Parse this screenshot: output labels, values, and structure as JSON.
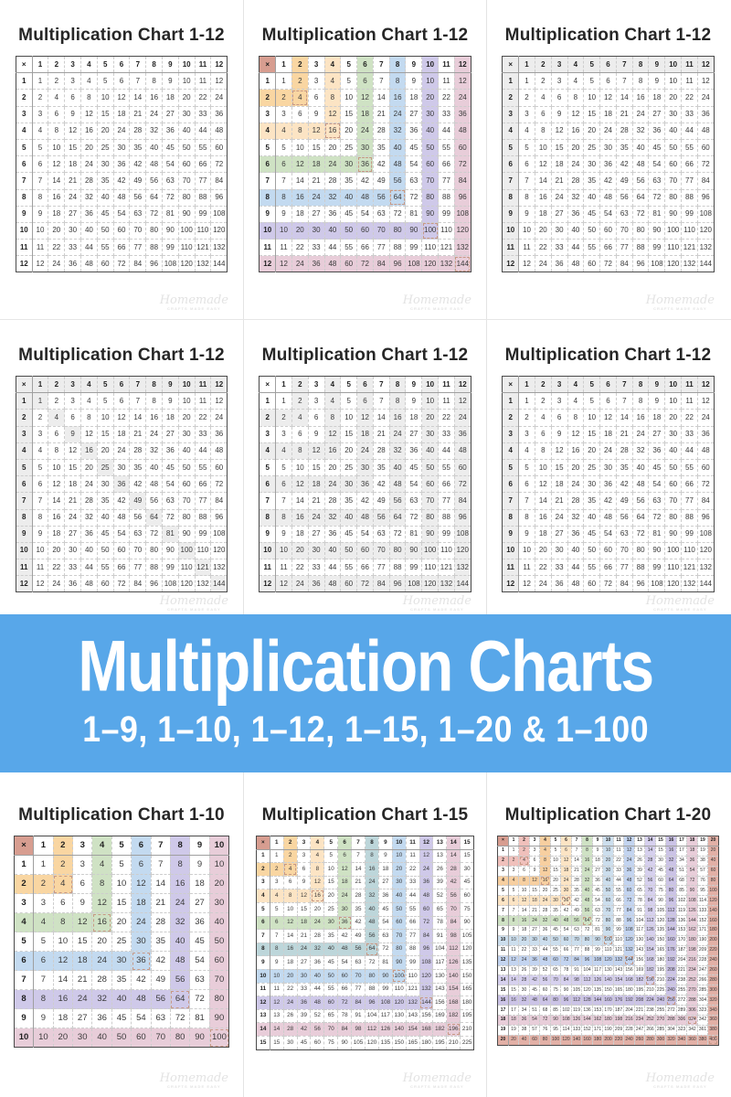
{
  "banner": {
    "title": "Multiplication Charts",
    "subtitle": "1–9, 1–10, 1–12, 1–15, 1–20 & 1–100",
    "bg_color": "#58a7e9",
    "text_color": "#ffffff"
  },
  "watermark": {
    "script": "Homemade",
    "tagline": "CRAFTS MADE EASY"
  },
  "styles": {
    "gray_highlight": "#ededed",
    "table_border": "#4a4a4a",
    "square_outline": "#c79986",
    "x_header_bg": "#d79d90"
  },
  "charts": [
    {
      "title": "Multiplication Chart 1-12",
      "max": 12,
      "style": "plain",
      "x_symbol": "×"
    },
    {
      "title": "Multiplication Chart 1-12",
      "max": 12,
      "style": "colorL",
      "x_symbol": "×",
      "x_bg": "#d79d90",
      "even_colors": {
        "2": "#f9d6a2",
        "4": "#fce4c4",
        "6": "#cfe2c4",
        "8": "#c3daf0",
        "10": "#cfc9e9",
        "12": "#e8cdd9"
      }
    },
    {
      "title": "Multiplication Chart 1-12",
      "max": 12,
      "style": "gray-headers",
      "x_symbol": "×"
    },
    {
      "title": "Multiplication Chart 1-12",
      "max": 12,
      "style": "gray-headers-diag",
      "x_symbol": "×"
    },
    {
      "title": "Multiplication Chart 1-12",
      "max": 12,
      "style": "grayL",
      "x_symbol": "×"
    },
    {
      "title": "Multiplication Chart 1-12",
      "max": 12,
      "style": "gray-headers",
      "x_symbol": "×"
    },
    {
      "title": "Multiplication Chart 1-10",
      "max": 10,
      "style": "colorL",
      "x_symbol": "×",
      "x_bg": "#d79d90",
      "even_colors": {
        "2": "#f9d6a2",
        "4": "#cfe2c4",
        "6": "#c3daf0",
        "8": "#cfc9e9",
        "10": "#e8cdd9"
      }
    },
    {
      "title": "Multiplication Chart 1-15",
      "max": 15,
      "style": "colorL",
      "x_symbol": "×",
      "x_bg": "#d79d90",
      "even_colors": {
        "2": "#f9d6a2",
        "4": "#fce4c4",
        "6": "#cfe2c4",
        "8": "#bdd6da",
        "10": "#c3daf0",
        "12": "#cfc9e9",
        "14": "#e8cdd9"
      }
    },
    {
      "title": "Multiplication Chart 1-20",
      "max": 20,
      "style": "colorL",
      "x_symbol": "×",
      "x_bg": "#d79d90",
      "even_colors": {
        "2": "#f0c0bb",
        "4": "#f7cfa0",
        "6": "#fce4c4",
        "8": "#cfe2c4",
        "10": "#ccdeed",
        "12": "#c3d4f0",
        "14": "#d6d0ee",
        "16": "#cbc3e6",
        "18": "#e8cdd9",
        "20": "#e2b0a6"
      }
    }
  ]
}
